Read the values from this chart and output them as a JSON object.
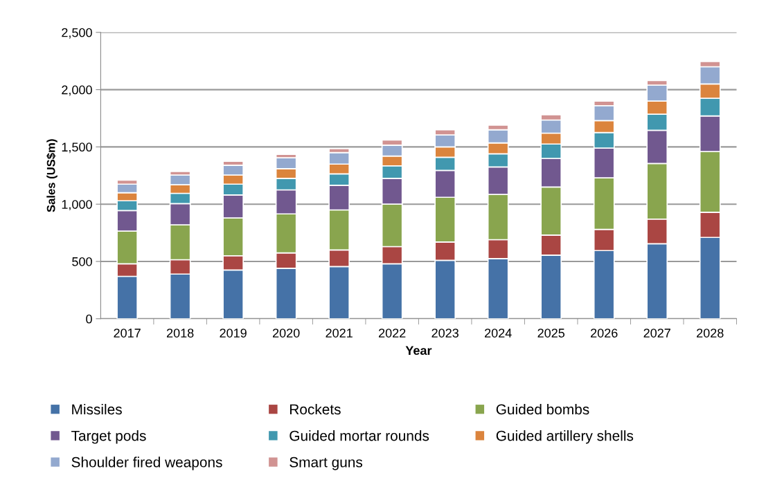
{
  "chart_data": {
    "type": "bar",
    "stacked": true,
    "xlabel": "Year",
    "ylabel": "Sales (US$m)",
    "categories": [
      "2017",
      "2018",
      "2019",
      "2020",
      "2021",
      "2022",
      "2023",
      "2024",
      "2025",
      "2026",
      "2027",
      "2028"
    ],
    "series": [
      {
        "name": "Missiles",
        "color": "#4572a7",
        "values": [
          370,
          390,
          425,
          440,
          455,
          480,
          510,
          525,
          555,
          595,
          655,
          710
        ]
      },
      {
        "name": "Rockets",
        "color": "#aa4643",
        "values": [
          110,
          125,
          125,
          135,
          145,
          150,
          160,
          165,
          175,
          185,
          215,
          220
        ]
      },
      {
        "name": "Guided bombs",
        "color": "#89a54e",
        "values": [
          285,
          305,
          330,
          340,
          350,
          370,
          390,
          395,
          420,
          450,
          485,
          530
        ]
      },
      {
        "name": "Target pods",
        "color": "#71588f",
        "values": [
          180,
          185,
          200,
          210,
          215,
          225,
          235,
          240,
          250,
          260,
          290,
          310
        ]
      },
      {
        "name": "Guided mortar rounds",
        "color": "#4198af",
        "values": [
          85,
          90,
          95,
          100,
          100,
          110,
          115,
          115,
          125,
          135,
          140,
          155
        ]
      },
      {
        "name": "Guided artillery shells",
        "color": "#db843d",
        "values": [
          70,
          75,
          80,
          85,
          85,
          85,
          90,
          95,
          95,
          105,
          115,
          125
        ]
      },
      {
        "name": "Shoulder fired weapons",
        "color": "#93a9cf",
        "values": [
          75,
          85,
          85,
          95,
          100,
          95,
          105,
          115,
          115,
          130,
          140,
          150
        ]
      },
      {
        "name": "Smart guns",
        "color": "#d19392",
        "values": [
          35,
          30,
          35,
          30,
          35,
          45,
          45,
          40,
          45,
          40,
          40,
          45
        ]
      }
    ],
    "ylim": [
      0,
      2500
    ],
    "yticks": [
      {
        "value": 0,
        "label": "0"
      },
      {
        "value": 500,
        "label": "500"
      },
      {
        "value": 1000,
        "label": "1,000"
      },
      {
        "value": 1500,
        "label": "1,500"
      },
      {
        "value": 2000,
        "label": "2,000"
      },
      {
        "value": 2500,
        "label": "2,500"
      }
    ],
    "grid": "y",
    "legend": "bottom"
  }
}
